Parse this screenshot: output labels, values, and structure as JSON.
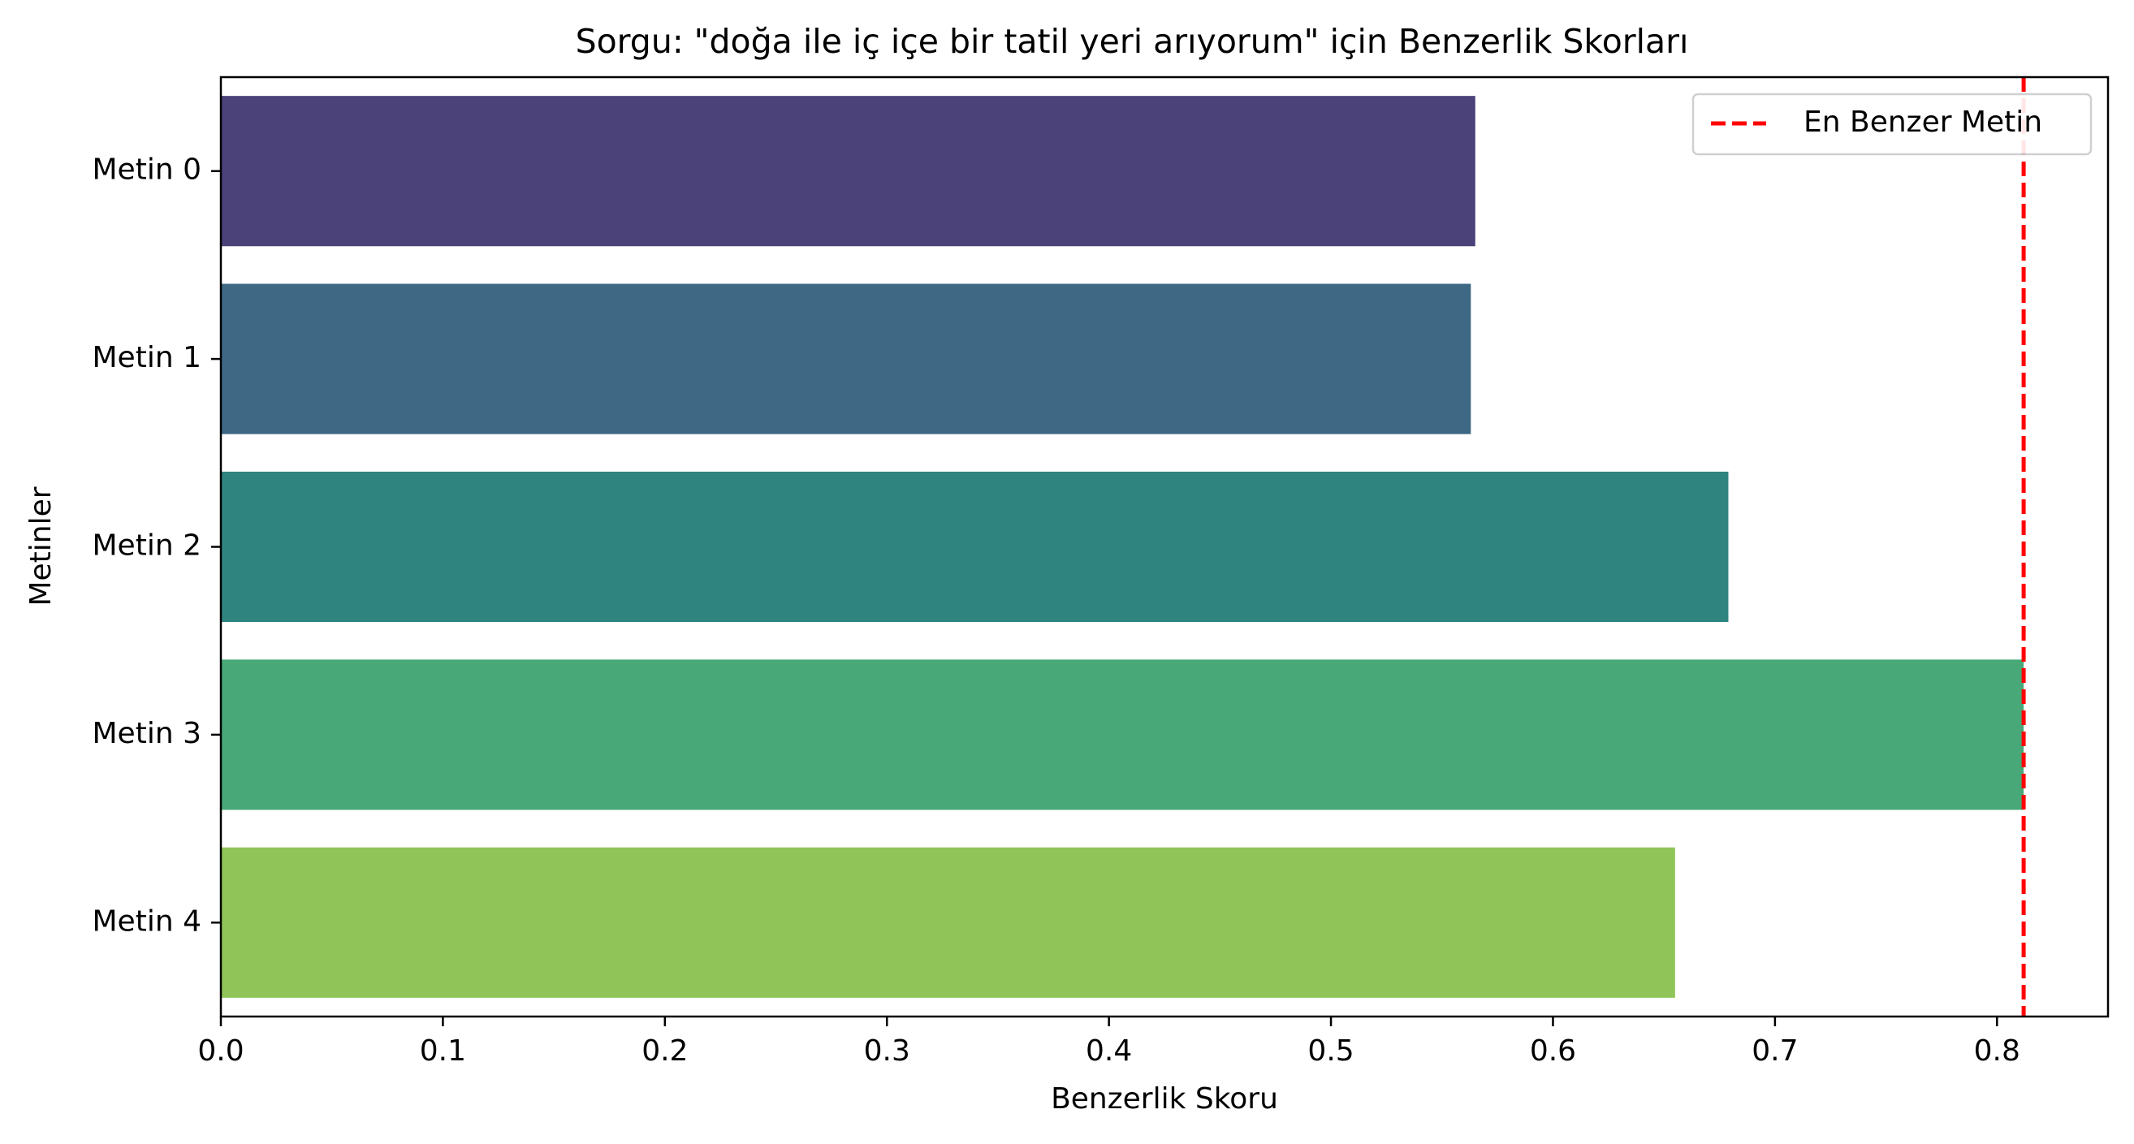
{
  "chart_data": {
    "type": "bar",
    "orientation": "horizontal",
    "title": "Sorgu: \"doğa ile iç içe bir tatil yeri arıyorum\" için Benzerlik Skorları",
    "xlabel": "Benzerlik Skoru",
    "ylabel": "Metinler",
    "categories": [
      "Metin 0",
      "Metin 1",
      "Metin 2",
      "Metin 3",
      "Metin 4"
    ],
    "values": [
      0.565,
      0.563,
      0.679,
      0.812,
      0.655
    ],
    "colors": [
      "#4b4279",
      "#3e6884",
      "#2f8480",
      "#48a878",
      "#90c458"
    ],
    "xlim": [
      0,
      0.85
    ],
    "xticks": [
      "0.0",
      "0.1",
      "0.2",
      "0.3",
      "0.4",
      "0.5",
      "0.6",
      "0.7",
      "0.8"
    ],
    "xtick_values": [
      0,
      0.1,
      0.2,
      0.3,
      0.4,
      0.5,
      0.6,
      0.7,
      0.8
    ],
    "reference_line": {
      "value": 0.812,
      "label": "En Benzer Metin",
      "color": "#ff0000",
      "style": "dashed"
    },
    "legend": {
      "placement": "top-right",
      "entries": [
        "En Benzer Metin"
      ]
    },
    "grid": false
  }
}
